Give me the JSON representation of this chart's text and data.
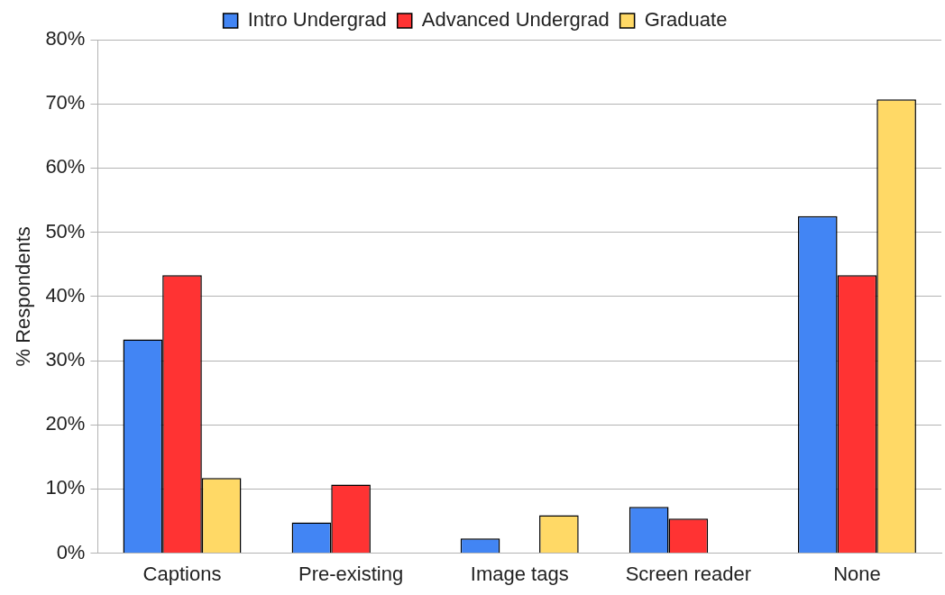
{
  "chart_data": {
    "type": "bar",
    "ylabel": "% Respondents",
    "categories": [
      "Captions",
      "Pre-existing",
      "Image tags",
      "Screen reader",
      "None"
    ],
    "series": [
      {
        "name": "Intro Undergrad",
        "color": "#4285f4",
        "values": [
          33.3,
          4.8,
          2.3,
          7.2,
          52.5
        ]
      },
      {
        "name": "Advanced Undergrad",
        "color": "#ff3333",
        "values": [
          43.3,
          10.7,
          0,
          5.4,
          43.3
        ]
      },
      {
        "name": "Graduate",
        "color": "#ffd966",
        "values": [
          11.7,
          0,
          5.9,
          0,
          70.7
        ]
      }
    ],
    "ylim": [
      0,
      80
    ],
    "yticks": [
      {
        "value": 0,
        "label": "0%"
      },
      {
        "value": 10,
        "label": "10%"
      },
      {
        "value": 20,
        "label": "20%"
      },
      {
        "value": 30,
        "label": "30%"
      },
      {
        "value": 40,
        "label": "40%"
      },
      {
        "value": 50,
        "label": "50%"
      },
      {
        "value": 60,
        "label": "60%"
      },
      {
        "value": 70,
        "label": "70%"
      },
      {
        "value": 80,
        "label": "80%"
      }
    ],
    "grid": "y",
    "legend": "top"
  }
}
